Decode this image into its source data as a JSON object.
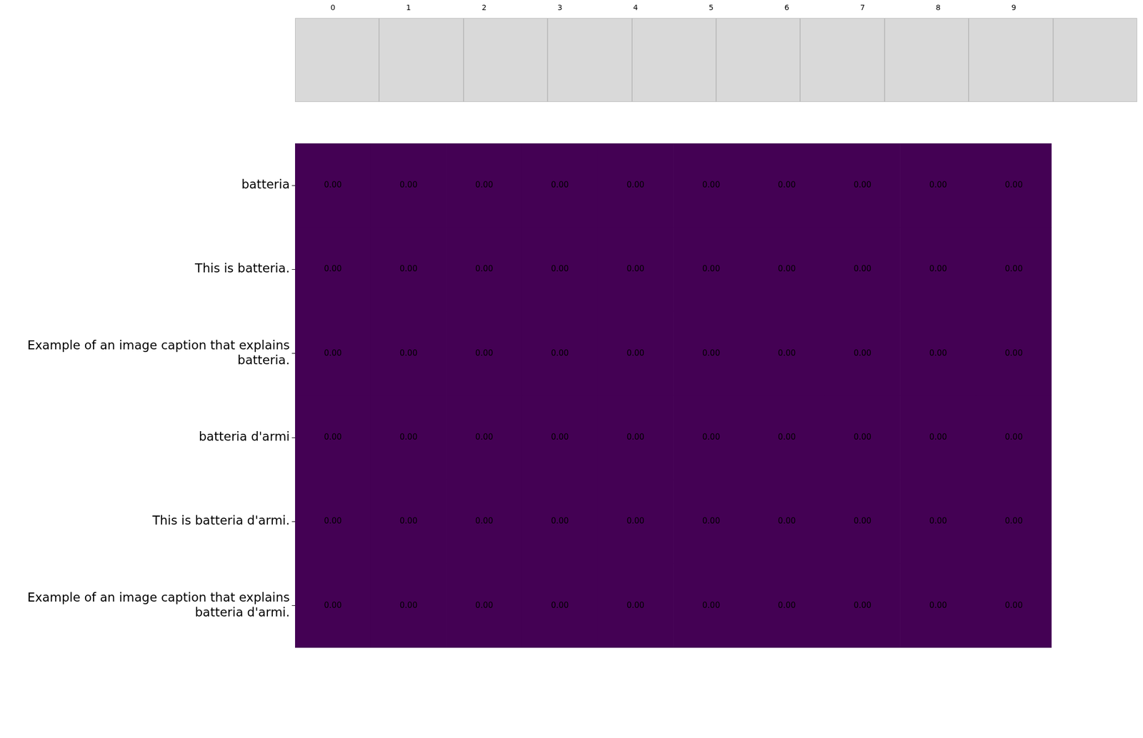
{
  "chart_data": {
    "type": "heatmap",
    "categories": [
      "0",
      "1",
      "2",
      "3",
      "4",
      "5",
      "6",
      "7",
      "8",
      "9"
    ],
    "rows": [
      "batteria",
      "This is batteria.",
      "Example of an image caption that explains batteria.",
      "batteria d'armi",
      "This is batteria d'armi.",
      "Example of an image caption that explains batteria d'armi."
    ],
    "values": [
      [
        0,
        0,
        0,
        0,
        0,
        0,
        0,
        0,
        0,
        0
      ],
      [
        0,
        0,
        0,
        0,
        0,
        0,
        0,
        0,
        0,
        0
      ],
      [
        0,
        0,
        0,
        0,
        0,
        0,
        0,
        0,
        0,
        0
      ],
      [
        0,
        0,
        0,
        0,
        0,
        0,
        0,
        0,
        0,
        0
      ],
      [
        0,
        0,
        0,
        0,
        0,
        0,
        0,
        0,
        0,
        0
      ],
      [
        0,
        0,
        0,
        0,
        0,
        0,
        0,
        0,
        0,
        0
      ]
    ],
    "value_labels": [
      [
        "0.00",
        "0.00",
        "0.00",
        "0.00",
        "0.00",
        "0.00",
        "0.00",
        "0.00",
        "0.00",
        "0.00"
      ],
      [
        "0.00",
        "0.00",
        "0.00",
        "0.00",
        "0.00",
        "0.00",
        "0.00",
        "0.00",
        "0.00",
        "0.00"
      ],
      [
        "0.00",
        "0.00",
        "0.00",
        "0.00",
        "0.00",
        "0.00",
        "0.00",
        "0.00",
        "0.00",
        "0.00"
      ],
      [
        "0.00",
        "0.00",
        "0.00",
        "0.00",
        "0.00",
        "0.00",
        "0.00",
        "0.00",
        "0.00",
        "0.00"
      ],
      [
        "0.00",
        "0.00",
        "0.00",
        "0.00",
        "0.00",
        "0.00",
        "0.00",
        "0.00",
        "0.00",
        "0.00"
      ],
      [
        "0.00",
        "0.00",
        "0.00",
        "0.00",
        "0.00",
        "0.00",
        "0.00",
        "0.00",
        "0.00",
        "0.00"
      ]
    ],
    "color": "#440154",
    "data_labels": true,
    "grid": false
  }
}
